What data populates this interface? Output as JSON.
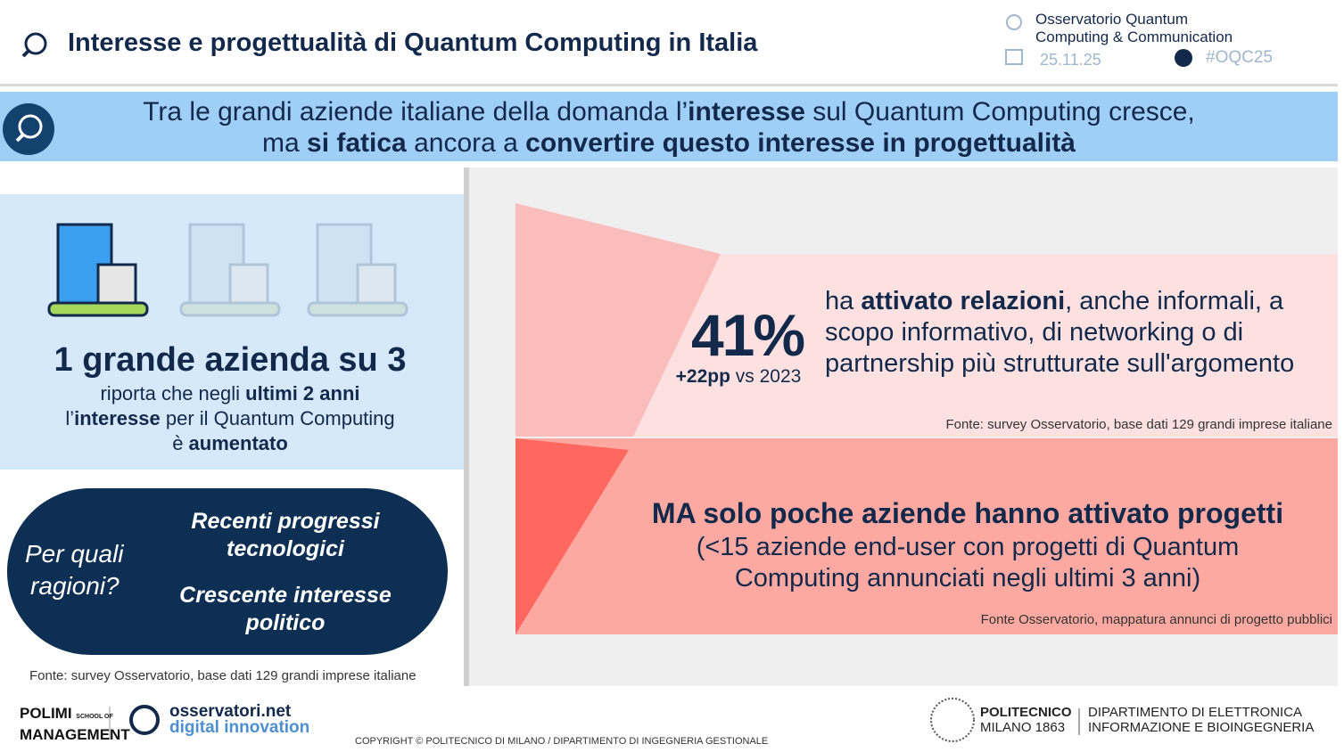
{
  "header": {
    "title": "Interesse e progettualità di Quantum Computing in Italia",
    "org_lines": [
      "Osservatorio Quantum",
      "Computing & Communication"
    ],
    "date": "25.11.25",
    "hashtag": "#OQC25"
  },
  "banner": {
    "line1": [
      "Tra le grandi aziende italiane della domanda l’",
      "interesse",
      " sul Quantum Computing cresce,"
    ],
    "line2": [
      "ma ",
      "si fatica",
      " ancora a ",
      "convertire questo interesse in progettualità"
    ]
  },
  "left": {
    "headline": "1 grande azienda su 3",
    "body": [
      [
        "riporta che negli ",
        "ultimi 2 anni"
      ],
      [
        "l’",
        "interesse",
        " per il Quantum Computing"
      ],
      [
        "è ",
        "aumentato"
      ]
    ],
    "question": [
      "Per quali",
      "ragioni?"
    ],
    "reasons": [
      "Recenti progressi tecnologici",
      "Crescente interesse politico"
    ],
    "source": "Fonte: survey Osservatorio, base dati 129 grandi imprese italiane"
  },
  "stat": {
    "value": "41%",
    "change": [
      "+22pp",
      " vs 2023"
    ],
    "text": [
      "ha ",
      "attivato relazioni",
      ", anche informali, a scopo informativo, di networking o di partnership più strutturate sull'argomento"
    ],
    "source": "Fonte: survey Osservatorio, base dati 129 grandi imprese italiane"
  },
  "projects": {
    "headline": "MA solo poche aziende hanno attivato progetti",
    "detail": "(<15 aziende end-user con progetti di Quantum Computing annunciati negli ultimi 3 anni)",
    "source": "Fonte Osservatorio, mappatura annunci di progetto pubblici"
  },
  "footer": {
    "polimi": [
      "POLIMI",
      "SCHOOL OF",
      "MANAGEMENT"
    ],
    "osservatori": [
      "osservatori.net",
      "digital innovation"
    ],
    "copyright": "COPYRIGHT © POLITECNICO DI MILANO / DIPARTIMENTO DI INGEGNERIA GESTIONALE",
    "politecnico": [
      "POLITECNICO",
      "MILANO 1863"
    ],
    "department": [
      "DIPARTIMENTO DI ELETTRONICA",
      "INFORMAZIONE E BIOINGEGNERIA"
    ]
  }
}
